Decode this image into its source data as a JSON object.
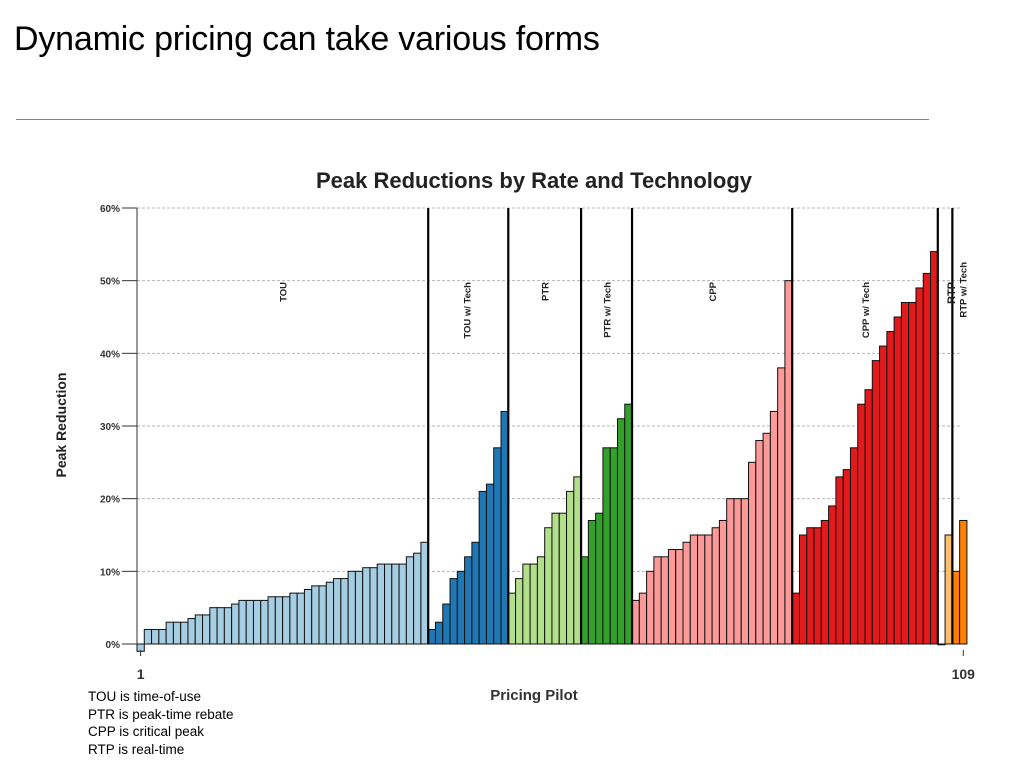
{
  "slide": {
    "title": "Dynamic pricing can take various forms",
    "footnotes": [
      "TOU is time-of-use",
      "PTR is peak-time rebate",
      "CPP is critical peak",
      "RTP is real-time"
    ]
  },
  "chart_data": {
    "type": "bar",
    "title": "Peak Reductions by Rate and Technology",
    "xlabel": "Pricing Pilot",
    "ylabel": "Peak Reduction",
    "ylim": [
      0,
      60
    ],
    "yticks": [
      "0%",
      "10%",
      "20%",
      "30%",
      "40%",
      "50%",
      "60%"
    ],
    "xticks": [
      "1",
      "109"
    ],
    "grid": true,
    "series": [
      {
        "name": "TOU",
        "color": "#a6cee3",
        "values": [
          -1,
          2,
          2,
          2,
          3,
          3,
          3,
          3.5,
          4,
          4,
          5,
          5,
          5,
          5.5,
          6,
          6,
          6,
          6,
          6.5,
          6.5,
          6.5,
          7,
          7,
          7.5,
          8,
          8,
          8.5,
          9,
          9,
          10,
          10,
          10.5,
          10.5,
          11,
          11,
          11,
          11,
          12,
          12.5,
          14
        ]
      },
      {
        "name": "TOU w/ Tech",
        "color": "#1f78b4",
        "values": [
          2,
          3,
          5.5,
          9,
          10,
          12,
          14,
          21,
          22,
          27,
          32
        ]
      },
      {
        "name": "PTR",
        "color": "#b2df8a",
        "values": [
          7,
          9,
          11,
          11,
          12,
          16,
          18,
          18,
          21,
          23
        ]
      },
      {
        "name": "PTR w/ Tech",
        "color": "#33a02c",
        "values": [
          12,
          17,
          18,
          27,
          27,
          31,
          33
        ]
      },
      {
        "name": "CPP",
        "color": "#fb9a99",
        "values": [
          6,
          7,
          10,
          12,
          12,
          13,
          13,
          14,
          15,
          15,
          15,
          16,
          17,
          20,
          20,
          20,
          25,
          28,
          29,
          32,
          38,
          50
        ]
      },
      {
        "name": "CPP w/ Tech",
        "color": "#e31a1c",
        "values": [
          7,
          15,
          16,
          16,
          17,
          19,
          23,
          24,
          27,
          33,
          35,
          39,
          41,
          43,
          45,
          47,
          47,
          49,
          51,
          54
        ]
      },
      {
        "name": "RTP",
        "color": "#fdbf6f",
        "values": [
          0,
          15
        ]
      },
      {
        "name": "RTP w/ Tech",
        "color": "#ff7f00",
        "values": [
          10,
          17
        ]
      }
    ]
  }
}
